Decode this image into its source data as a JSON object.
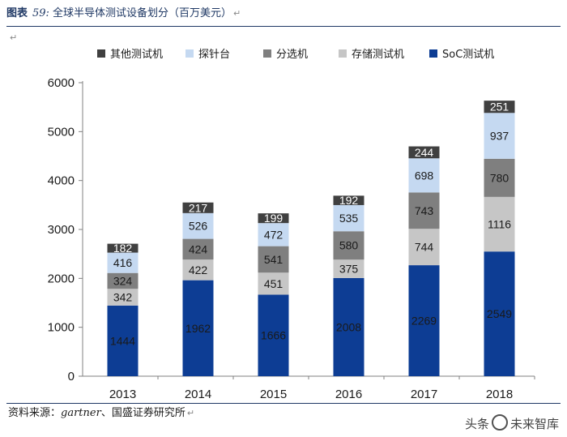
{
  "caption": {
    "label": "图表",
    "number": "59:",
    "title": "全球半导体测试设备划分（百万美元）",
    "return_mark": "↵"
  },
  "source": {
    "prefix": "资料来源：",
    "italic": "gartner",
    "suffix": "、国盛证券研究所",
    "return_mark": "↵"
  },
  "watermark": {
    "text_left": "头条",
    "text_right": "未来智库"
  },
  "colors": {
    "soc": "#0d3d94",
    "memory": "#c6c6c6",
    "handler": "#7f7f7f",
    "prober": "#c5d9f1",
    "other": "#404040",
    "rule": "#1f3864"
  },
  "chart_data": {
    "type": "bar",
    "stacked": true,
    "categories": [
      "2013",
      "2014",
      "2015",
      "2016",
      "2017",
      "2018"
    ],
    "ylim": [
      0,
      6000
    ],
    "yticks": [
      0,
      1000,
      2000,
      3000,
      4000,
      5000,
      6000
    ],
    "grid": false,
    "legend_position": "top",
    "series": [
      {
        "name": "SoC测试机",
        "color": "#0d3d94",
        "label_color": "#1a1a1a",
        "values": [
          1444,
          1962,
          1666,
          2008,
          2269,
          2549
        ]
      },
      {
        "name": "存储测试机",
        "color": "#c6c6c6",
        "label_color": "#1a1a1a",
        "values": [
          342,
          422,
          451,
          375,
          744,
          1116
        ]
      },
      {
        "name": "分选机",
        "color": "#7f7f7f",
        "label_color": "#1a1a1a",
        "values": [
          324,
          424,
          541,
          580,
          743,
          780
        ]
      },
      {
        "name": "探针台",
        "color": "#c5d9f1",
        "label_color": "#1a1a1a",
        "values": [
          416,
          526,
          472,
          535,
          698,
          937
        ]
      },
      {
        "name": "其他测试机",
        "color": "#404040",
        "label_color": "#ffffff",
        "values": [
          182,
          217,
          199,
          192,
          244,
          251
        ]
      }
    ],
    "legend_order": [
      4,
      3,
      2,
      1,
      0
    ]
  }
}
